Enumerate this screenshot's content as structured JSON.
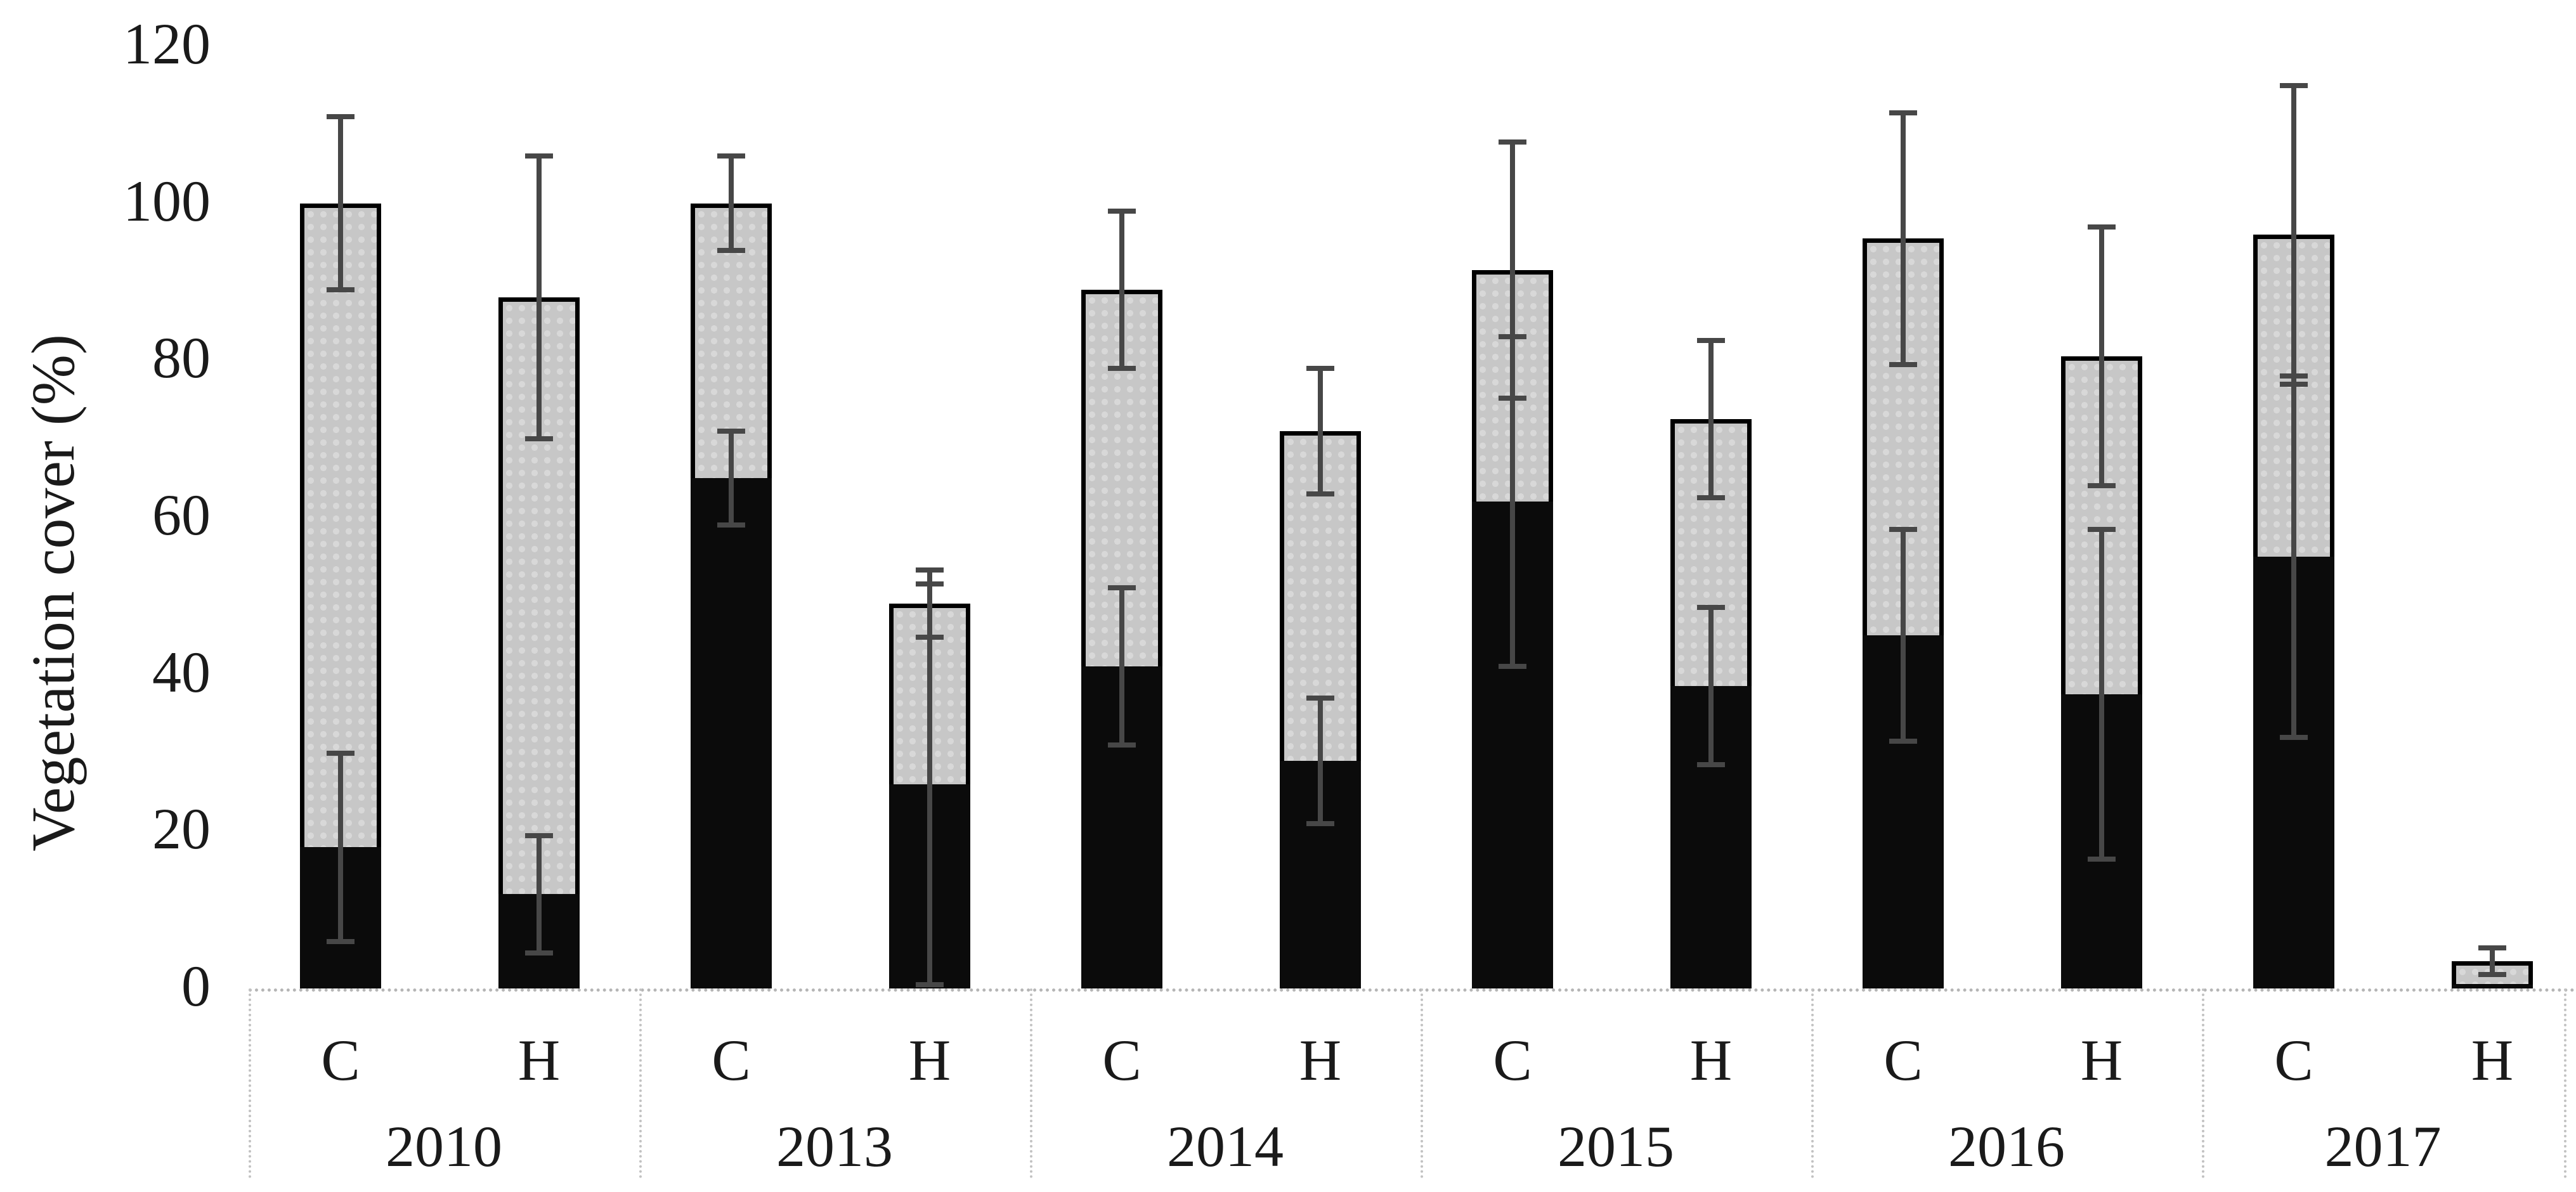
{
  "chart_data": {
    "type": "bar",
    "stacked": true,
    "title": "",
    "xlabel": "",
    "ylabel": "Vegetation cover (%)",
    "ylim": [
      0,
      120
    ],
    "yticks": [
      0,
      20,
      40,
      60,
      80,
      100,
      120
    ],
    "grid": false,
    "legend_position": "none",
    "categories": [
      "2010",
      "2013",
      "2014",
      "2015",
      "2016",
      "2017"
    ],
    "subcategories": [
      "C",
      "H"
    ],
    "series_note": "Each bar is stacked: black lower segment + light-gray stippled upper segment; error bars shown on the black-segment top and on the bar total (vegetation cover %).",
    "bars": [
      {
        "year": "2010",
        "treatment": "C",
        "black": 18,
        "gray": 82,
        "total": 100,
        "total_err": 11,
        "black_err": 12
      },
      {
        "year": "2010",
        "treatment": "H",
        "black": 12,
        "gray": 76,
        "total": 88,
        "total_err": 18,
        "black_err": 7.5
      },
      {
        "year": "2013",
        "treatment": "C",
        "black": 65,
        "gray": 35,
        "total": 100,
        "total_err": 6,
        "black_err": 6
      },
      {
        "year": "2013",
        "treatment": "H",
        "black": 26,
        "gray": 23,
        "total": 49,
        "total_err": 4.3,
        "black_err": 25.5
      },
      {
        "year": "2014",
        "treatment": "C",
        "black": 41,
        "gray": 48,
        "total": 89,
        "total_err": 10,
        "black_err": 10
      },
      {
        "year": "2014",
        "treatment": "H",
        "black": 29,
        "gray": 42,
        "total": 71,
        "total_err": 8,
        "black_err": 8
      },
      {
        "year": "2015",
        "treatment": "C",
        "black": 62,
        "gray": 29.5,
        "total": 91.5,
        "total_err": 16.3,
        "black_err": 21
      },
      {
        "year": "2015",
        "treatment": "H",
        "black": 38.5,
        "gray": 34,
        "total": 72.5,
        "total_err": 10,
        "black_err": 10
      },
      {
        "year": "2016",
        "treatment": "C",
        "black": 45,
        "gray": 50.5,
        "total": 95.5,
        "total_err": 16,
        "black_err": 13.5
      },
      {
        "year": "2016",
        "treatment": "H",
        "black": 37.5,
        "gray": 43,
        "total": 80.5,
        "total_err": 16.5,
        "black_err": 21
      },
      {
        "year": "2017",
        "treatment": "C",
        "black": 55,
        "gray": 41,
        "total": 96,
        "total_err": 19,
        "black_err": 23
      },
      {
        "year": "2017",
        "treatment": "H",
        "black": 0.5,
        "gray": 3,
        "total": 3.5,
        "total_err": 1.7,
        "black_err": 0
      }
    ],
    "colors": {
      "black_segment": "#0b0b0b",
      "gray_segment": "#c7c7c7",
      "bar_outline": "#000000",
      "error_bar": "#474747",
      "axis_guides": "#bdbdbd",
      "text": "#1a1a1a",
      "background": "#ffffff"
    }
  }
}
